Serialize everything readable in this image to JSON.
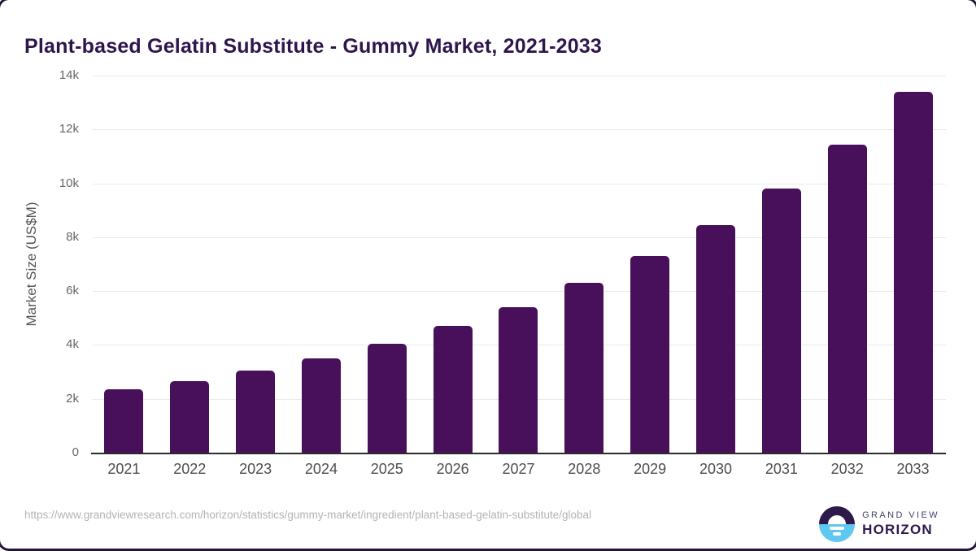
{
  "title": "Plant-based Gelatin Substitute - Gummy Market, 2021-2033",
  "chart_data": {
    "type": "bar",
    "title": "Plant-based Gelatin Substitute - Gummy Market, 2021-2033",
    "categories": [
      "2021",
      "2022",
      "2023",
      "2024",
      "2025",
      "2026",
      "2027",
      "2028",
      "2029",
      "2030",
      "2031",
      "2032",
      "2033"
    ],
    "values": [
      2350,
      2650,
      3050,
      3500,
      4050,
      4700,
      5400,
      6300,
      7300,
      8450,
      9800,
      11450,
      13400
    ],
    "xlabel": "",
    "ylabel": "Market Size (US$M)",
    "ylim": [
      0,
      14000
    ],
    "yticks": [
      {
        "label": "0",
        "value": 0
      },
      {
        "label": "2k",
        "value": 2000
      },
      {
        "label": "4k",
        "value": 4000
      },
      {
        "label": "6k",
        "value": 6000
      },
      {
        "label": "8k",
        "value": 8000
      },
      {
        "label": "10k",
        "value": 10000
      },
      {
        "label": "12k",
        "value": 12000
      },
      {
        "label": "14k",
        "value": 14000
      }
    ],
    "grid": true,
    "legend_position": "none",
    "bar_color": "#48105a"
  },
  "footer": {
    "source_url": "https://www.grandviewresearch.com/horizon/statistics/gummy-market/ingredient/plant-based-gelatin-substitute/global",
    "logo": {
      "brand_top": "GRAND VIEW",
      "brand_bottom": "HORIZON"
    }
  },
  "colors": {
    "bar": "#48105a",
    "title_text": "#2e164d",
    "gridline": "#e9e9e9",
    "axis_line": "#2b2b2b",
    "y_tick_label": "#666666",
    "x_tick_label": "#4d4d4d",
    "url_text": "#b3b3b3",
    "logo_purple": "#2b1a4a",
    "logo_blue": "#5fc8f1"
  }
}
